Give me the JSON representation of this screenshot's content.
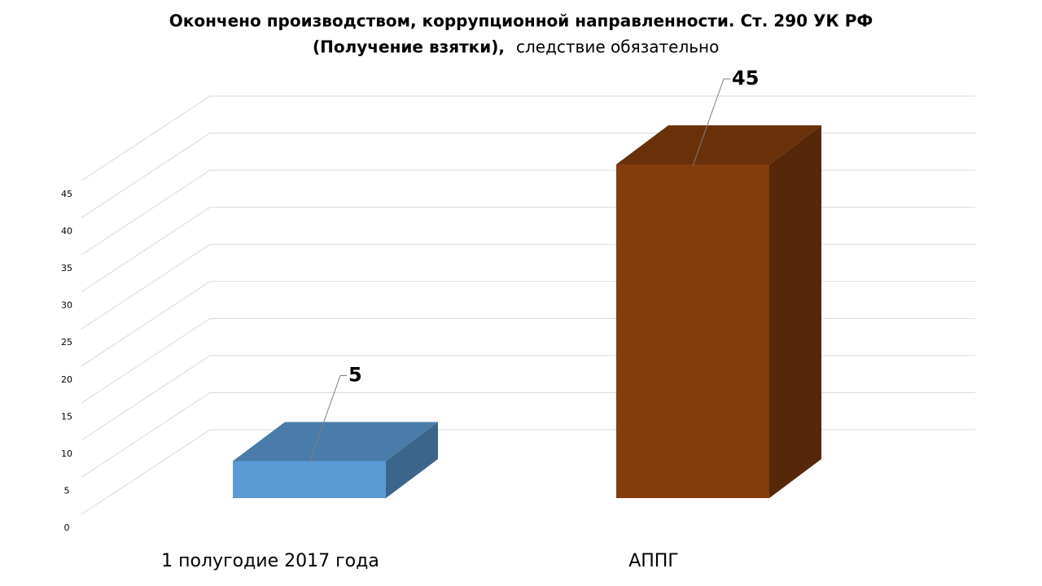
{
  "chart_data": {
    "type": "bar3d",
    "title": [
      "Окончено производством, коррупционной направленности. Ст. 290 УК РФ",
      "(Получение взятки),",
      "следствие обязательно"
    ],
    "categories": [
      "1 полугодие 2017 года",
      "АППГ"
    ],
    "values": [
      5,
      45
    ],
    "colors": [
      "#5b9bd5",
      "#843c0c"
    ],
    "ylim": [
      0,
      45
    ],
    "yticks": [
      0,
      5,
      10,
      15,
      20,
      25,
      30,
      35,
      40,
      45
    ],
    "grid": true
  }
}
